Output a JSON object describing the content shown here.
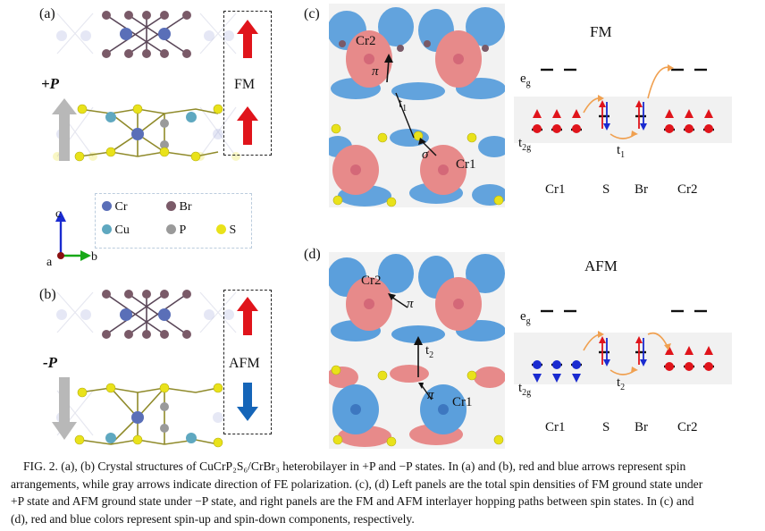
{
  "panels": {
    "a": {
      "letter": "(a)",
      "polarization": "+P",
      "state": "FM",
      "spin_colors": [
        "#e0141b",
        "#e0141b"
      ]
    },
    "b": {
      "letter": "(b)",
      "polarization": "-P",
      "state": "AFM",
      "spin_colors": [
        "#e0141b",
        "#1565b8"
      ]
    },
    "c": {
      "letter": "(c)",
      "title": "FM",
      "labels": {
        "cr2": "Cr2",
        "cr1": "Cr1",
        "pi": "π",
        "sigma": "σ",
        "t1": "t",
        "t1_sub": "1"
      },
      "diagram": {
        "eg": "e",
        "eg_sub": "g",
        "t2g": "t",
        "t2g_sub": "2g",
        "t": "t",
        "t_sub": "1",
        "columns": [
          "Cr1",
          "S",
          "Br",
          "Cr2"
        ]
      }
    },
    "d": {
      "letter": "(d)",
      "title": "AFM",
      "labels": {
        "cr2": "Cr2",
        "cr1": "Cr1",
        "pi_top": "π",
        "pi_bottom": "π",
        "t2": "t",
        "t2_sub": "2"
      },
      "diagram": {
        "eg": "e",
        "eg_sub": "g",
        "t2g": "t",
        "t2g_sub": "2g",
        "t": "t",
        "t_sub": "2",
        "columns": [
          "Cr1",
          "S",
          "Br",
          "Cr2"
        ]
      }
    }
  },
  "legend": {
    "items": [
      {
        "label": "Cr",
        "color": "#5a6fb8"
      },
      {
        "label": "Br",
        "color": "#7a5a68"
      },
      {
        "label": "Cu",
        "color": "#5fa8c0"
      },
      {
        "label": "P",
        "color": "#9a9a9a"
      },
      {
        "label": "S",
        "color": "#e9e21a"
      }
    ]
  },
  "axes": {
    "c": "c",
    "a": "a",
    "b": "b"
  },
  "colors": {
    "spin_up": "#e0141b",
    "spin_down": "#1565b8",
    "density_up": "#e78a8a",
    "density_down": "#5b9fdc",
    "hop_arrow": "#f0a050"
  },
  "caption": {
    "line1": "FIG. 2.  (a), (b) Crystal structures of CuCrP₂S₆/CrBr₃ heterobilayer in +P and −P states. In (a) and (b), red and blue arrows represent spin",
    "line2": "arrangements, while gray arrows indicate direction of FE polarization. (c), (d) Left panels are the total spin densities of FM ground state under",
    "line3": "+P state and AFM ground state under −P state, and right panels are the FM and AFM interlayer hopping paths between spin states. In (c) and",
    "line4": "(d), red and blue colors represent spin-up and spin-down components, respectively."
  }
}
